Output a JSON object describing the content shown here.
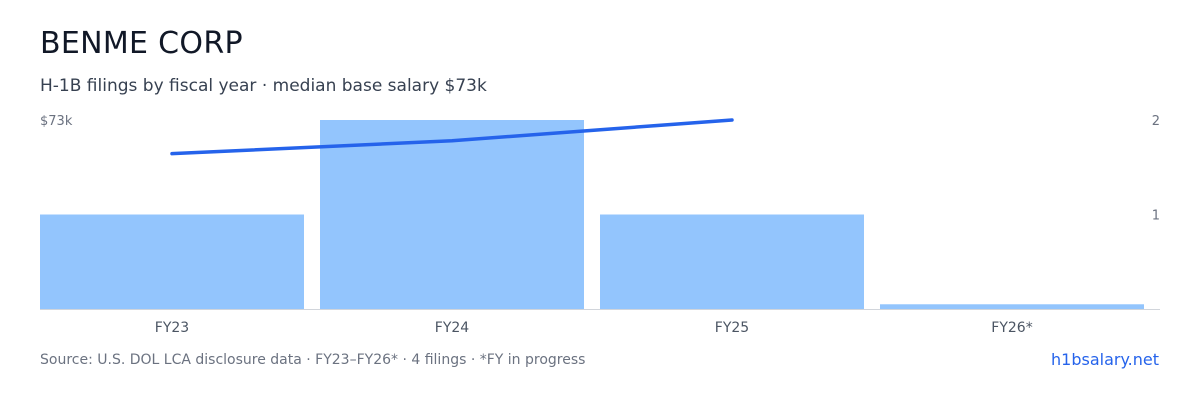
{
  "header": {
    "title": "BENME CORP",
    "subtitle": "H-1B filings by fiscal year · median base salary $73k"
  },
  "footer": {
    "source": "Source: U.S. DOL LCA disclosure data · FY23–FY26* · 4 filings · *FY in progress",
    "site": "h1bsalary.net"
  },
  "colors": {
    "bar": "#93c5fd",
    "line": "#2563eb",
    "axis": "#d1d5db",
    "tick_text": "#6b7280"
  },
  "chart_data": {
    "type": "bar",
    "categories": [
      "FY23",
      "FY24",
      "FY25",
      "FY26*"
    ],
    "series": [
      {
        "type": "bar",
        "axis": "right",
        "values": [
          1,
          2,
          1,
          0.05
        ]
      },
      {
        "type": "line",
        "axis": "left",
        "values": [
          60,
          65,
          73,
          null
        ]
      }
    ],
    "left_axis": {
      "ylim": [
        0,
        73
      ],
      "tick_labels": [
        "$73k"
      ]
    },
    "right_axis": {
      "ylim": [
        0,
        2
      ],
      "ticks": [
        1,
        2
      ]
    },
    "xlabel": "",
    "ylabel": "",
    "grid": false
  }
}
